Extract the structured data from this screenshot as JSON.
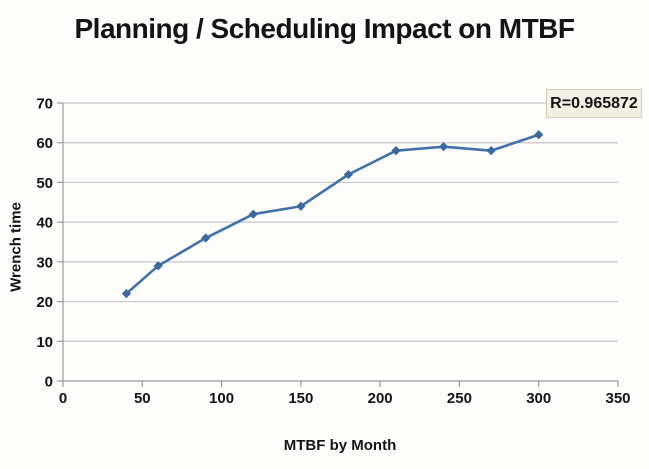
{
  "chart_data": {
    "type": "line",
    "title": "Planning / Scheduling Impact on MTBF",
    "xlabel": "MTBF by Month",
    "ylabel": "Wrench time",
    "x": [
      40,
      60,
      90,
      120,
      150,
      180,
      210,
      240,
      270,
      300
    ],
    "y": [
      22,
      29,
      36,
      42,
      44,
      52,
      58,
      59,
      58,
      62
    ],
    "xlim": [
      0,
      350
    ],
    "ylim": [
      0,
      70
    ],
    "xticks": [
      0,
      50,
      100,
      150,
      200,
      250,
      300,
      350
    ],
    "yticks": [
      0,
      10,
      20,
      30,
      40,
      50,
      60,
      70
    ],
    "grid": "horizontal-only",
    "legend": "none",
    "marker": "diamond",
    "annotation": {
      "text": "R=0.965872",
      "position": "top-right"
    },
    "colors": {
      "series_line": "#4171a8",
      "series_marker": "#3c68a0",
      "gridline": "#c7c7c7",
      "axis": "#9a9a9a",
      "text": "#141414",
      "annotation_bg": "#f2efe4",
      "annotation_border": "#cfc9b6",
      "background": "#fdfdfc"
    }
  }
}
